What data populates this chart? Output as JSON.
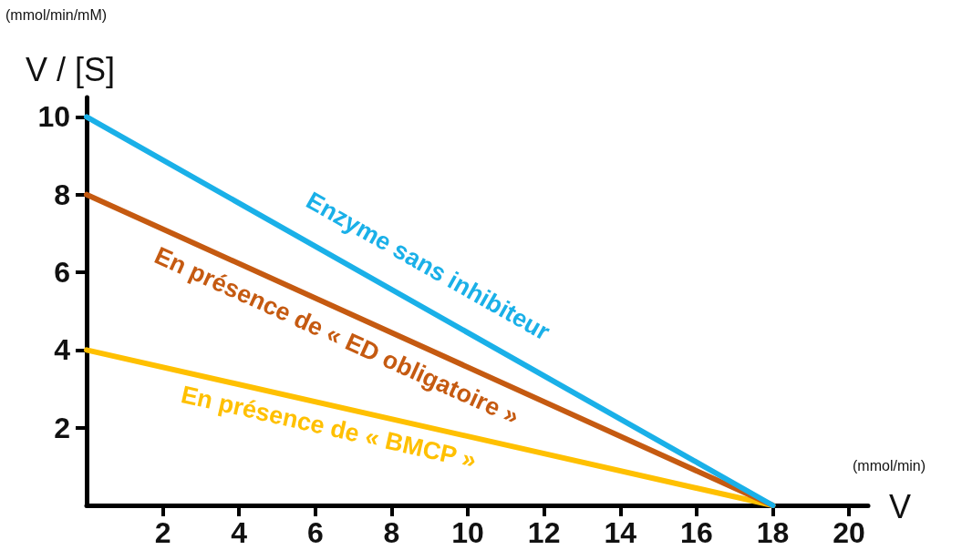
{
  "chart_data": {
    "type": "line",
    "xlabel": "V",
    "ylabel": "V / [S]",
    "annotations": [
      "(mmol/min/mM)",
      "(mmol/min)"
    ],
    "x": [
      0,
      18
    ],
    "series": [
      {
        "name": "Enzyme sans inhibiteur",
        "color": "#1ab0e8",
        "values": [
          10,
          0
        ]
      },
      {
        "name": "En présence de « ED obligatoire »",
        "color": "#c55a11",
        "values": [
          8,
          0
        ]
      },
      {
        "name": "En présence de « BMCP »",
        "color": "#ffc000",
        "values": [
          4,
          0
        ]
      }
    ],
    "xlim": [
      0,
      20.5
    ],
    "ylim": [
      0,
      10.5
    ],
    "xticks": [
      2,
      4,
      6,
      8,
      10,
      12,
      14,
      16,
      18,
      20
    ],
    "yticks": [
      2,
      4,
      6,
      8,
      10
    ],
    "marker": "none",
    "line_style": "solid"
  }
}
